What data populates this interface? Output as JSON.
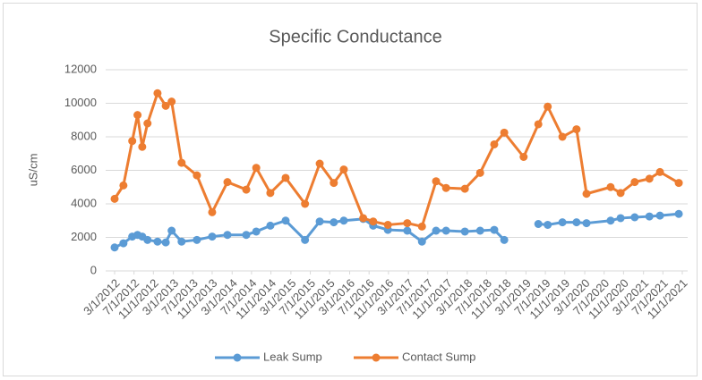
{
  "chart_data": {
    "type": "line",
    "title": "Specific Conductance",
    "y_label": "uS/cm",
    "x": [
      2012.17,
      2012.32,
      2012.47,
      2012.56,
      2012.64,
      2012.73,
      2012.9,
      2013.04,
      2013.14,
      2013.31,
      2013.57,
      2013.83,
      2014.09,
      2014.41,
      2014.58,
      2014.82,
      2015.08,
      2015.41,
      2015.66,
      2015.9,
      2016.07,
      2016.4,
      2016.57,
      2016.82,
      2017.15,
      2017.4,
      2017.64,
      2017.81,
      2018.13,
      2018.39,
      2018.63,
      2018.8,
      2019.13,
      2019.38,
      2019.54,
      2019.79,
      2020.03,
      2020.2,
      2020.61,
      2020.78,
      2021.02,
      2021.27,
      2021.45,
      2021.77
    ],
    "series": [
      {
        "name": "Leak Sump",
        "color": "#5b9bd5",
        "values": [
          1400,
          1650,
          2050,
          2150,
          2050,
          1850,
          1750,
          1700,
          2400,
          1750,
          1850,
          2050,
          2150,
          2150,
          2350,
          2700,
          3000,
          1850,
          2950,
          2900,
          3000,
          3100,
          2700,
          2450,
          2400,
          1750,
          2400,
          2400,
          2350,
          2400,
          2450,
          1850,
          null,
          2800,
          2750,
          2900,
          2900,
          2850,
          3000,
          3150,
          3200,
          3250,
          3300,
          3400
        ]
      },
      {
        "name": "Contact Sump",
        "color": "#ed7d31",
        "values": [
          4300,
          5100,
          7750,
          9300,
          7400,
          8800,
          10600,
          9850,
          10100,
          6450,
          5700,
          3500,
          5300,
          4850,
          6150,
          4650,
          5550,
          4000,
          6400,
          5250,
          6050,
          3150,
          2950,
          2750,
          2850,
          2650,
          5350,
          4950,
          4900,
          5850,
          7550,
          8250,
          6800,
          8750,
          9800,
          8000,
          8450,
          4600,
          5000,
          4650,
          5300,
          5500,
          5900,
          5250
        ]
      }
    ],
    "xlim": [
      2012.17,
      2021.83
    ],
    "xticks": [
      {
        "value": 2012.17,
        "label": "3/1/2012"
      },
      {
        "value": 2012.5,
        "label": "7/1/2012"
      },
      {
        "value": 2012.83,
        "label": "11/1/2012"
      },
      {
        "value": 2013.17,
        "label": "3/1/2013"
      },
      {
        "value": 2013.5,
        "label": "7/1/2013"
      },
      {
        "value": 2013.83,
        "label": "11/1/2013"
      },
      {
        "value": 2014.17,
        "label": "3/1/2014"
      },
      {
        "value": 2014.5,
        "label": "7/1/2014"
      },
      {
        "value": 2014.83,
        "label": "11/1/2014"
      },
      {
        "value": 2015.17,
        "label": "3/1/2015"
      },
      {
        "value": 2015.5,
        "label": "7/1/2015"
      },
      {
        "value": 2015.83,
        "label": "11/1/2015"
      },
      {
        "value": 2016.17,
        "label": "3/1/2016"
      },
      {
        "value": 2016.5,
        "label": "7/1/2016"
      },
      {
        "value": 2016.83,
        "label": "11/1/2016"
      },
      {
        "value": 2017.17,
        "label": "3/1/2017"
      },
      {
        "value": 2017.5,
        "label": "7/1/2017"
      },
      {
        "value": 2017.83,
        "label": "11/1/2017"
      },
      {
        "value": 2018.17,
        "label": "3/1/2018"
      },
      {
        "value": 2018.5,
        "label": "7/1/2018"
      },
      {
        "value": 2018.83,
        "label": "11/1/2018"
      },
      {
        "value": 2019.17,
        "label": "3/1/2019"
      },
      {
        "value": 2019.5,
        "label": "7/1/2019"
      },
      {
        "value": 2019.83,
        "label": "11/1/2019"
      },
      {
        "value": 2020.17,
        "label": "3/1/2020"
      },
      {
        "value": 2020.5,
        "label": "7/1/2020"
      },
      {
        "value": 2020.83,
        "label": "11/1/2020"
      },
      {
        "value": 2021.17,
        "label": "3/1/2021"
      },
      {
        "value": 2021.5,
        "label": "7/1/2021"
      },
      {
        "value": 2021.83,
        "label": "11/1/2021"
      }
    ],
    "ylim": [
      0,
      12000
    ],
    "yticks": [
      0,
      2000,
      4000,
      6000,
      8000,
      10000,
      12000
    ],
    "grid": true,
    "legend": "bottom"
  }
}
